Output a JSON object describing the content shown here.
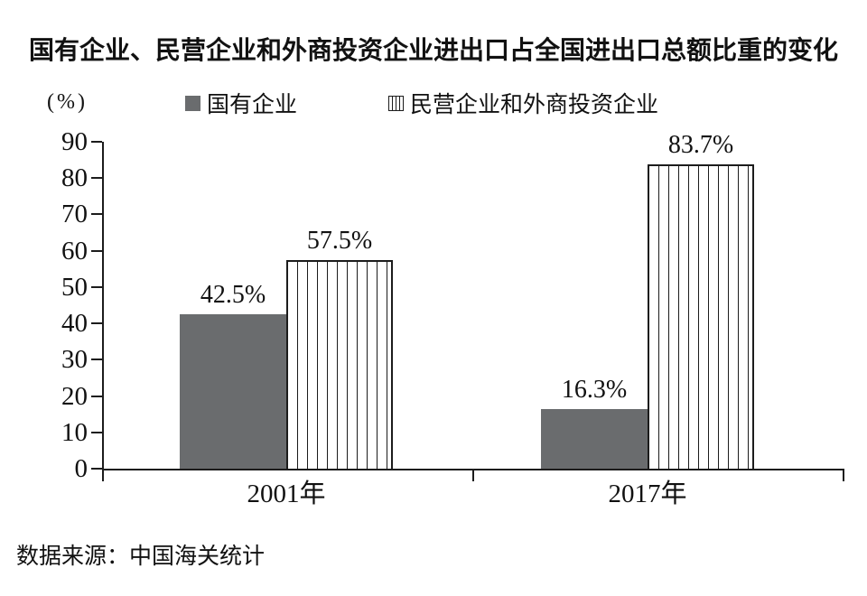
{
  "source": "数据来源：中国海关统计",
  "colors": {
    "bar_gray": "#6a6c6e",
    "ink": "#1c1c1c",
    "background": "#ffffff"
  },
  "chart_data": {
    "type": "bar",
    "title": "国有企业、民营企业和外商投资企业进出口占全国进出口总额比重的变化",
    "ylabel": "(%)",
    "xlabel": "",
    "categories": [
      "2001年",
      "2017年"
    ],
    "series": [
      {
        "name": "国有企业",
        "style": "solid-gray",
        "values": [
          42.5,
          16.3
        ]
      },
      {
        "name": "民营企业和外商投资企业",
        "style": "vertical-hatch",
        "values": [
          57.5,
          83.7
        ]
      }
    ],
    "value_labels": [
      [
        "42.5%",
        "57.5%"
      ],
      [
        "16.3%",
        "83.7%"
      ]
    ],
    "ylim": [
      0,
      90
    ],
    "yticks": [
      0,
      10,
      20,
      30,
      40,
      50,
      60,
      70,
      80,
      90
    ],
    "grid": false,
    "legend_position": "top"
  }
}
